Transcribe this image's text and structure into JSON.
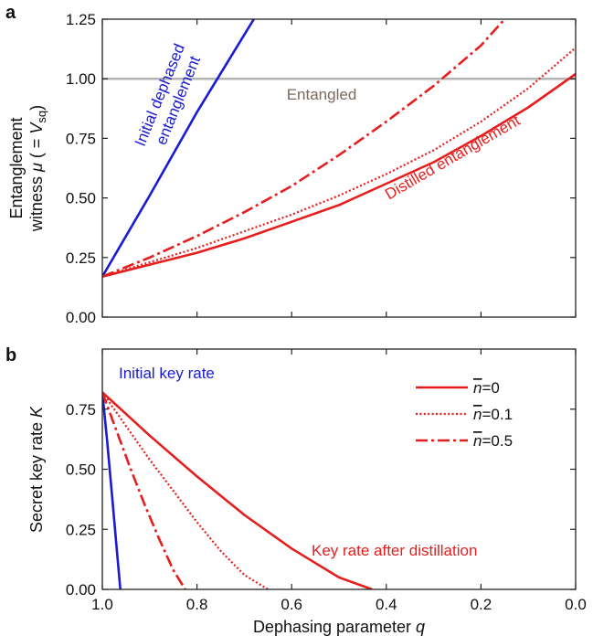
{
  "chart_data": [
    {
      "panel_label": "a",
      "type": "line",
      "ylabel_line1": "Entanglement",
      "ylabel_line2_prefix": "witness ",
      "ylabel_mu": "μ",
      "ylabel_mid": " ( = ",
      "ylabel_V": "V",
      "ylabel_sub": "sq",
      "ylabel_suffix": ")",
      "xlim": [
        1.0,
        0.0
      ],
      "ylim": [
        0.0,
        1.25
      ],
      "yticks": [
        "0.00",
        "0.25",
        "0.50",
        "0.75",
        "1.00",
        "1.25"
      ],
      "ytick_values": [
        0.0,
        0.25,
        0.5,
        0.75,
        1.0,
        1.25
      ],
      "threshold": 1.0,
      "threshold_color": "#b4b4b4",
      "annotations": {
        "entangled": "Entangled",
        "initial_line1": "Initial dephased",
        "initial_line2": "entanglement",
        "distilled": "Distilled entanglement"
      },
      "series": [
        {
          "style": "solid",
          "color": "#1a1ad4",
          "x": [
            1.0,
            0.9,
            0.8,
            0.68
          ],
          "y": [
            0.17,
            0.51,
            0.86,
            1.25
          ]
        },
        {
          "style": "solid",
          "color": "#e61e1e",
          "x": [
            1.0,
            0.9,
            0.8,
            0.7,
            0.6,
            0.5,
            0.4,
            0.3,
            0.2,
            0.1,
            0.0
          ],
          "y": [
            0.17,
            0.22,
            0.27,
            0.33,
            0.4,
            0.47,
            0.56,
            0.65,
            0.76,
            0.88,
            1.02
          ]
        },
        {
          "style": "dotted",
          "color": "#e61e1e",
          "x": [
            1.0,
            0.9,
            0.8,
            0.7,
            0.6,
            0.5,
            0.4,
            0.3,
            0.2,
            0.1,
            0.0
          ],
          "y": [
            0.17,
            0.23,
            0.29,
            0.36,
            0.43,
            0.51,
            0.6,
            0.7,
            0.82,
            0.96,
            1.13
          ]
        },
        {
          "style": "dashdot",
          "color": "#e61e1e",
          "x": [
            1.0,
            0.9,
            0.8,
            0.7,
            0.6,
            0.5,
            0.4,
            0.3,
            0.2,
            0.15
          ],
          "y": [
            0.17,
            0.25,
            0.34,
            0.44,
            0.55,
            0.68,
            0.82,
            0.97,
            1.14,
            1.25
          ]
        }
      ]
    },
    {
      "panel_label": "b",
      "type": "line",
      "ylabel_prefix": "Secret key rate ",
      "ylabel_K": "K",
      "xlabel_prefix": "Dephasing parameter ",
      "xlabel_q": "q",
      "xlim": [
        1.0,
        0.0
      ],
      "ylim": [
        0.0,
        1.0
      ],
      "xticks": [
        "1.0",
        "0.8",
        "0.6",
        "0.4",
        "0.2",
        "0.0"
      ],
      "xtick_values": [
        1.0,
        0.8,
        0.6,
        0.4,
        0.2,
        0.0
      ],
      "yticks": [
        "0.00",
        "0.25",
        "0.50",
        "0.75"
      ],
      "ytick_values": [
        0.0,
        0.25,
        0.5,
        0.75
      ],
      "annotations": {
        "initial": "Initial key rate",
        "after": "Key rate after distillation"
      },
      "legend": {
        "position": "top-right",
        "entries": [
          {
            "style": "solid",
            "n": "n",
            "eq": "=0"
          },
          {
            "style": "dotted",
            "n": "n",
            "eq": "=0.1"
          },
          {
            "style": "dashdot",
            "n": "n",
            "eq": "=0.5"
          }
        ]
      },
      "series": [
        {
          "style": "solid",
          "color": "#1a1ad4",
          "x": [
            1.0,
            0.99,
            0.98,
            0.97,
            0.962
          ],
          "y": [
            0.82,
            0.62,
            0.4,
            0.18,
            0.0
          ]
        },
        {
          "style": "solid",
          "color": "#e61e1e",
          "x": [
            1.0,
            0.9,
            0.8,
            0.7,
            0.6,
            0.5,
            0.43
          ],
          "y": [
            0.82,
            0.64,
            0.47,
            0.31,
            0.17,
            0.05,
            0.0
          ]
        },
        {
          "style": "dotted",
          "color": "#e61e1e",
          "x": [
            1.0,
            0.95,
            0.9,
            0.85,
            0.8,
            0.75,
            0.7,
            0.65
          ],
          "y": [
            0.82,
            0.68,
            0.54,
            0.41,
            0.28,
            0.16,
            0.06,
            0.0
          ]
        },
        {
          "style": "dashdot",
          "color": "#e61e1e",
          "x": [
            1.0,
            0.97,
            0.94,
            0.91,
            0.88,
            0.85,
            0.825
          ],
          "y": [
            0.82,
            0.66,
            0.5,
            0.35,
            0.21,
            0.08,
            0.0
          ]
        }
      ]
    }
  ]
}
